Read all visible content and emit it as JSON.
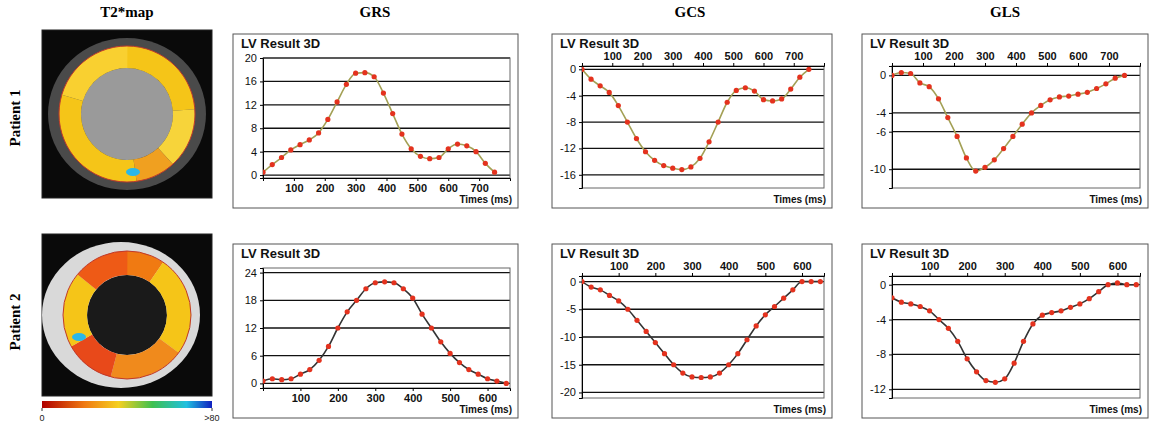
{
  "figure": {
    "columns": [
      "T2*map",
      "GRS",
      "GCS",
      "GLS"
    ],
    "rows": [
      "Patient 1",
      "Patient 2"
    ],
    "colorbar": {
      "range": [
        0,
        80
      ],
      "ticks": [
        {
          "value": 0,
          "label": "0"
        },
        {
          "value": 80,
          "label": ">80"
        }
      ]
    }
  },
  "chart_data": [
    {
      "type": "line",
      "title": "LV Result 3D",
      "x_label": "Times (ms)",
      "x": [
        0,
        30,
        60,
        90,
        120,
        150,
        180,
        210,
        240,
        270,
        300,
        330,
        360,
        390,
        420,
        450,
        480,
        510,
        540,
        570,
        600,
        630,
        660,
        690,
        720,
        750
      ],
      "series": [
        {
          "color": "#a3a055",
          "marker": "circle",
          "values": [
            0.5,
            1.8,
            3.0,
            4.3,
            5.2,
            6.0,
            7.2,
            9.5,
            12.5,
            15.5,
            17.4,
            17.5,
            16.8,
            14.0,
            10.5,
            7.0,
            4.5,
            3.2,
            2.8,
            3.0,
            4.5,
            5.3,
            5.0,
            4.0,
            2.0,
            0.5
          ]
        }
      ],
      "xlim": [
        0,
        800
      ],
      "xticks": [
        100,
        200,
        300,
        400,
        500,
        600,
        700
      ],
      "ylim": [
        -0.5,
        20
      ],
      "yticks": [
        0,
        4,
        8,
        12,
        16,
        20
      ],
      "grid": true
    },
    {
      "type": "line",
      "title": "LV Result 3D",
      "x_label": "Times (ms)",
      "x": [
        0,
        30,
        60,
        90,
        120,
        150,
        180,
        210,
        240,
        270,
        300,
        330,
        360,
        390,
        420,
        450,
        480,
        510,
        540,
        570,
        600,
        630,
        660,
        690,
        720,
        750
      ],
      "series": [
        {
          "color": "#a3a055",
          "marker": "circle",
          "values": [
            0,
            -1.5,
            -2.5,
            -3.5,
            -5.5,
            -8,
            -10.5,
            -12.5,
            -13.8,
            -14.6,
            -15,
            -15.2,
            -14.8,
            -13.5,
            -11,
            -8,
            -5,
            -3.2,
            -2.8,
            -3.3,
            -4.6,
            -4.8,
            -4.5,
            -3,
            -1.2,
            0
          ]
        }
      ],
      "xlim": [
        0,
        800
      ],
      "xticks": [
        100,
        200,
        300,
        400,
        500,
        600,
        700
      ],
      "ylim": [
        -18,
        0.5
      ],
      "yticks": [
        0,
        -4,
        -8,
        -12,
        -16
      ],
      "grid": true
    },
    {
      "type": "line",
      "title": "LV Result 3D",
      "x_label": "Times (ms)",
      "x": [
        0,
        30,
        60,
        90,
        120,
        150,
        180,
        210,
        240,
        270,
        300,
        330,
        360,
        390,
        420,
        450,
        480,
        510,
        540,
        570,
        600,
        630,
        660,
        690,
        720,
        750
      ],
      "series": [
        {
          "color": "#a3a055",
          "marker": "circle",
          "values": [
            0,
            0.3,
            0.2,
            -0.8,
            -1.2,
            -2.5,
            -4.5,
            -6.5,
            -8.8,
            -10.2,
            -9.8,
            -9,
            -7.8,
            -6.5,
            -5.2,
            -4,
            -3.2,
            -2.6,
            -2.3,
            -2.2,
            -2,
            -1.8,
            -1.4,
            -0.9,
            -0.3,
            0
          ]
        }
      ],
      "xlim": [
        0,
        800
      ],
      "xticks": [
        100,
        200,
        300,
        400,
        500,
        600,
        700
      ],
      "ylim": [
        -12,
        1
      ],
      "yticks": [
        0,
        -4,
        -6,
        -10
      ],
      "grid": true
    },
    {
      "type": "line",
      "title": "LV Result 3D",
      "x_label": "Times (ms)",
      "x": [
        0,
        25,
        50,
        75,
        100,
        125,
        150,
        175,
        200,
        225,
        250,
        275,
        300,
        325,
        350,
        375,
        400,
        425,
        450,
        475,
        500,
        525,
        550,
        575,
        600,
        625,
        650
      ],
      "series": [
        {
          "color": "#333333",
          "marker": "circle",
          "values": [
            0.5,
            1,
            0.8,
            1,
            2,
            3,
            5,
            8,
            12,
            15.5,
            18,
            20.5,
            21.8,
            22,
            21.8,
            20.5,
            18.5,
            15,
            12,
            9,
            6.5,
            4.5,
            3,
            2,
            1,
            0.5,
            0
          ]
        }
      ],
      "xlim": [
        0,
        660
      ],
      "xticks": [
        100,
        200,
        300,
        400,
        500,
        600
      ],
      "ylim": [
        -1,
        25
      ],
      "yticks": [
        0,
        6,
        12,
        18,
        24
      ],
      "grid": true
    },
    {
      "type": "line",
      "title": "LV Result 3D",
      "x_label": "Times (ms)",
      "x": [
        0,
        25,
        50,
        75,
        100,
        125,
        150,
        175,
        200,
        225,
        250,
        275,
        300,
        325,
        350,
        375,
        400,
        425,
        450,
        475,
        500,
        525,
        550,
        575,
        600,
        625,
        650
      ],
      "series": [
        {
          "color": "#333333",
          "marker": "circle",
          "values": [
            0,
            -1,
            -1.5,
            -2.5,
            -3.5,
            -5,
            -7,
            -9,
            -11,
            -13,
            -15,
            -16.5,
            -17.2,
            -17.3,
            -17.2,
            -16.5,
            -15,
            -13,
            -10.5,
            -8,
            -6,
            -4.5,
            -3,
            -1.5,
            0,
            0,
            0
          ]
        }
      ],
      "xlim": [
        0,
        660
      ],
      "xticks": [
        100,
        200,
        300,
        400,
        500,
        600
      ],
      "ylim": [
        -21,
        1
      ],
      "yticks": [
        0,
        -5,
        -10,
        -15,
        -20
      ],
      "grid": true
    },
    {
      "type": "line",
      "title": "LV Result 3D",
      "x_label": "Times (ms)",
      "x": [
        0,
        25,
        50,
        75,
        100,
        125,
        150,
        175,
        200,
        225,
        250,
        275,
        300,
        325,
        350,
        375,
        400,
        425,
        450,
        475,
        500,
        525,
        550,
        575,
        600,
        625,
        650
      ],
      "series": [
        {
          "color": "#333333",
          "marker": "circle",
          "values": [
            -1.5,
            -2,
            -2.2,
            -2.5,
            -3,
            -4,
            -5,
            -6.5,
            -8.5,
            -10,
            -11,
            -11.2,
            -10.8,
            -9,
            -6.5,
            -4.5,
            -3.5,
            -3.2,
            -3,
            -2.6,
            -2.2,
            -1.6,
            -0.8,
            0,
            0.2,
            0,
            0
          ]
        }
      ],
      "xlim": [
        0,
        660
      ],
      "xticks": [
        100,
        200,
        300,
        400,
        500,
        600
      ],
      "ylim": [
        -13,
        1
      ],
      "yticks": [
        0,
        -4,
        -8,
        -12
      ],
      "grid": true
    }
  ]
}
